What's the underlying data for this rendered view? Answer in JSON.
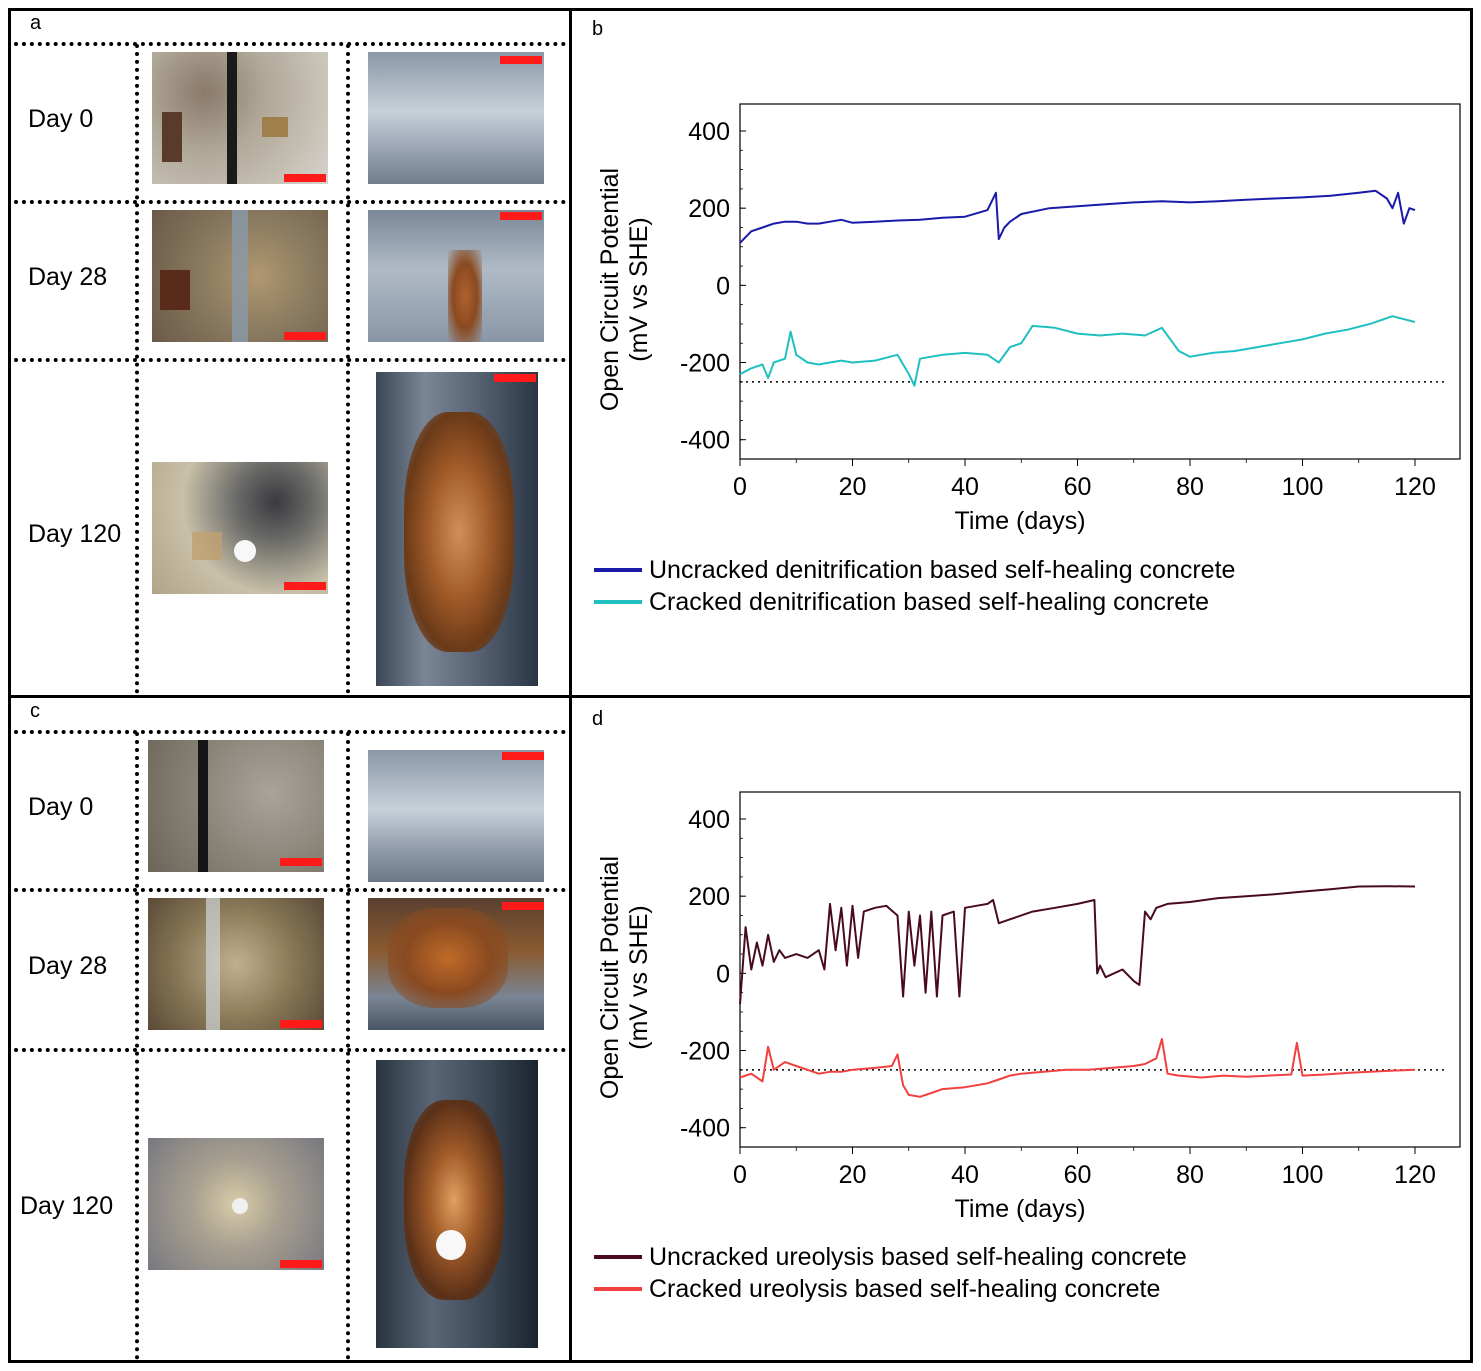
{
  "panels": {
    "a": {
      "letter": "a",
      "days": [
        "Day 0",
        "Day 28",
        "Day 120"
      ]
    },
    "b": {
      "letter": "b"
    },
    "c": {
      "letter": "c",
      "days": [
        "Day 0",
        "Day 28",
        "Day 120"
      ]
    },
    "d": {
      "letter": "d"
    }
  },
  "colors": {
    "uncracked_denitrification": "#1a1aaa",
    "cracked_denitrification": "#20c0c0",
    "uncracked_ureolysis": "#4a0a1e",
    "cracked_ureolysis": "#f04040",
    "scalebar": "#ff1a1a"
  },
  "chart_data": [
    {
      "type": "line",
      "panel": "b",
      "xlabel": "Time (days)",
      "ylabel": "Open Circuit Potential (mV vs SHE)",
      "ylabel_line1": "Open Circuit Potential",
      "ylabel_line2": "(mV vs SHE)",
      "xlim": [
        0,
        128
      ],
      "ylim": [
        -450,
        470
      ],
      "xticks": [
        0,
        20,
        40,
        60,
        80,
        100,
        120
      ],
      "xtick_labels": [
        "0",
        "20",
        "40",
        "60",
        "80",
        "100",
        "120"
      ],
      "yticks": [
        400,
        200,
        0,
        -200,
        -400
      ],
      "ytick_labels": [
        "400",
        "200",
        "0",
        "-200",
        "-400"
      ],
      "reference_line": -250,
      "series": [
        {
          "name": "Uncracked denitrification based self-healing concrete",
          "x": [
            0,
            1,
            2,
            4,
            6,
            8,
            10,
            12,
            14,
            16,
            18,
            20,
            24,
            28,
            32,
            36,
            40,
            44,
            45.5,
            46,
            47,
            48,
            50,
            55,
            60,
            65,
            70,
            75,
            80,
            85,
            90,
            95,
            100,
            105,
            110,
            113,
            115,
            116,
            117,
            118,
            119,
            120
          ],
          "values": [
            110,
            125,
            140,
            150,
            160,
            165,
            165,
            160,
            160,
            165,
            170,
            162,
            165,
            168,
            170,
            175,
            178,
            195,
            240,
            120,
            150,
            165,
            185,
            200,
            205,
            210,
            215,
            218,
            215,
            218,
            222,
            225,
            228,
            232,
            240,
            245,
            225,
            200,
            240,
            160,
            200,
            195
          ]
        },
        {
          "name": "Cracked denitrification based self-healing concrete",
          "x": [
            0,
            2,
            4,
            5,
            6,
            8,
            9,
            10,
            12,
            14,
            16,
            18,
            20,
            24,
            28,
            30,
            31,
            32,
            34,
            36,
            40,
            44,
            46,
            48,
            50,
            52,
            56,
            60,
            64,
            68,
            72,
            75,
            78,
            80,
            84,
            88,
            92,
            96,
            100,
            104,
            108,
            112,
            116,
            120
          ],
          "values": [
            -230,
            -215,
            -205,
            -240,
            -200,
            -190,
            -120,
            -180,
            -200,
            -205,
            -200,
            -195,
            -200,
            -195,
            -180,
            -230,
            -260,
            -190,
            -185,
            -180,
            -175,
            -180,
            -200,
            -160,
            -150,
            -105,
            -110,
            -125,
            -130,
            -125,
            -130,
            -110,
            -170,
            -185,
            -175,
            -170,
            -160,
            -150,
            -140,
            -125,
            -115,
            -100,
            -80,
            -95
          ]
        }
      ]
    },
    {
      "type": "line",
      "panel": "d",
      "xlabel": "Time (days)",
      "ylabel": "Open Circuit Potential (mV vs SHE)",
      "ylabel_line1": "Open Circuit Potential",
      "ylabel_line2": "(mV vs SHE)",
      "xlim": [
        0,
        128
      ],
      "ylim": [
        -450,
        470
      ],
      "xticks": [
        0,
        20,
        40,
        60,
        80,
        100,
        120
      ],
      "xtick_labels": [
        "0",
        "20",
        "40",
        "60",
        "80",
        "100",
        "120"
      ],
      "yticks": [
        400,
        200,
        0,
        -200,
        -400
      ],
      "ytick_labels": [
        "400",
        "200",
        "0",
        "-200",
        "-400"
      ],
      "reference_line": -250,
      "series": [
        {
          "name": "Uncracked ureolysis based self-healing concrete",
          "x": [
            0,
            1,
            2,
            3,
            4,
            5,
            6,
            7,
            8,
            10,
            12,
            14,
            15,
            16,
            17,
            18,
            19,
            20,
            21,
            22,
            24,
            26,
            28,
            29,
            30,
            31,
            32,
            33,
            34,
            35,
            36,
            38,
            39,
            40,
            42,
            44,
            45,
            46,
            48,
            52,
            56,
            60,
            63,
            63.5,
            64,
            65,
            68,
            70,
            71,
            72,
            73,
            74,
            76,
            80,
            85,
            90,
            95,
            100,
            105,
            110,
            115,
            120
          ],
          "values": [
            -80,
            120,
            10,
            80,
            20,
            100,
            30,
            60,
            40,
            50,
            40,
            60,
            10,
            180,
            60,
            170,
            20,
            175,
            40,
            160,
            170,
            175,
            150,
            -60,
            160,
            20,
            150,
            -50,
            160,
            -60,
            150,
            160,
            -60,
            170,
            175,
            180,
            190,
            130,
            140,
            160,
            170,
            180,
            190,
            0,
            20,
            -10,
            10,
            -20,
            -30,
            160,
            140,
            170,
            180,
            185,
            195,
            200,
            205,
            212,
            218,
            225,
            226,
            225
          ]
        },
        {
          "name": "Cracked ureolysis based self-healing concrete",
          "x": [
            0,
            2,
            4,
            5,
            6,
            8,
            10,
            12,
            14,
            16,
            18,
            20,
            24,
            27,
            28,
            29,
            30,
            32,
            34,
            36,
            40,
            44,
            46,
            48,
            50,
            54,
            58,
            62,
            66,
            70,
            72,
            74,
            75,
            76,
            78,
            82,
            86,
            90,
            94,
            98,
            99,
            100,
            104,
            108,
            112,
            116,
            120
          ],
          "values": [
            -270,
            -260,
            -280,
            -190,
            -250,
            -230,
            -240,
            -250,
            -260,
            -255,
            -255,
            -250,
            -245,
            -240,
            -210,
            -290,
            -315,
            -320,
            -310,
            -300,
            -295,
            -285,
            -275,
            -265,
            -260,
            -255,
            -250,
            -250,
            -245,
            -240,
            -235,
            -220,
            -170,
            -260,
            -265,
            -270,
            -265,
            -268,
            -265,
            -262,
            -180,
            -265,
            -262,
            -258,
            -255,
            -252,
            -250
          ]
        }
      ]
    }
  ],
  "legends": {
    "b": [
      "Uncracked denitrification based self-healing concrete",
      "Cracked denitrification based self-healing concrete"
    ],
    "d": [
      "Uncracked ureolysis based self-healing concrete",
      "Cracked ureolysis based self-healing concrete"
    ]
  }
}
